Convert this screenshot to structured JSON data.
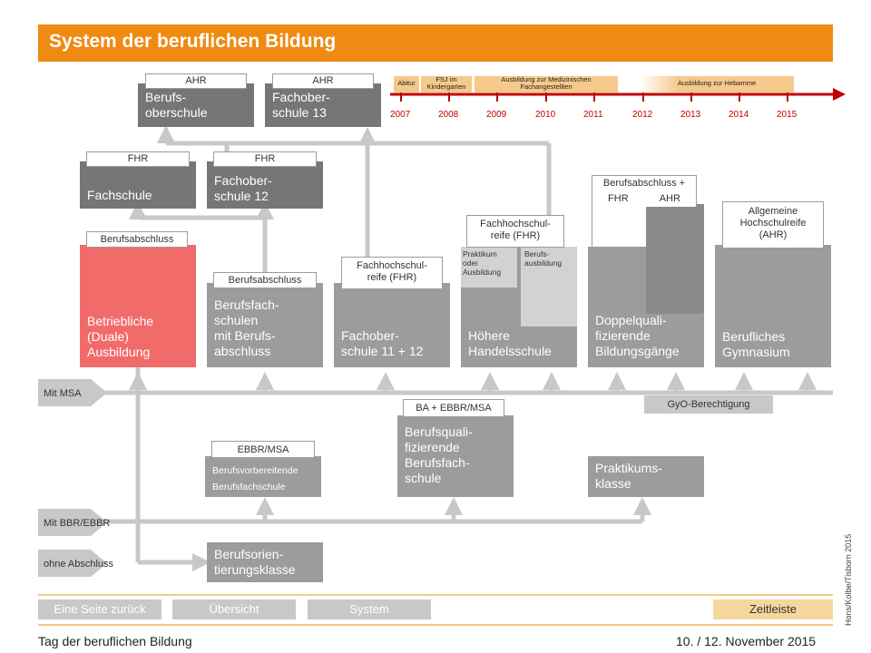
{
  "header": {
    "title": "System der beruflichen Bildung"
  },
  "timeline": {
    "years": [
      "2007",
      "2008",
      "2009",
      "2010",
      "2011",
      "2012",
      "2013",
      "2014",
      "2015"
    ],
    "phases": [
      {
        "label": "Abitur"
      },
      {
        "label": "FSJ im Kindergarten"
      },
      {
        "label": "Ausbildung zur Medizinischen Fachangestellten"
      },
      {
        "label": "Ausbildung zur Hebamme"
      }
    ]
  },
  "boxes": {
    "berufsoberschule": {
      "tag": "AHR",
      "text": "Berufs-\noberschule"
    },
    "fachoberschule13": {
      "tag": "AHR",
      "text": "Fachober-\nschule 13"
    },
    "fachschule": {
      "tag": "FHR",
      "text": "Fachschule"
    },
    "fachoberschule12": {
      "tag": "FHR",
      "text": "Fachober-\nschule 12"
    },
    "duale": {
      "tag": "Berufsabschluss",
      "text": "Betriebliche\n(Duale)\nAusbildung"
    },
    "berufsfachschulen": {
      "tag": "Berufsabschluss",
      "text": "Berufsfach-\nschulen\nmit Berufs-\nabschluss"
    },
    "fachoberschule1112": {
      "tag": "Fachhochschul-\nreife (FHR)",
      "text": "Fachober-\nschule 11 + 12"
    },
    "handelsschule": {
      "tag": "Fachhochschul-\nreife (FHR)",
      "sub_left": "Praktikum\noder\nAusbildung",
      "sub_right": "Berufs-\nausbildung",
      "text": "Höhere\nHandelsschule"
    },
    "doppelquali": {
      "tag": "Berufsabschluss +",
      "tag_fhr": "FHR",
      "tag_ahr": "AHR",
      "text": "Doppelquali-\nfizierende\nBildungsgänge"
    },
    "gymnasium": {
      "tag": "Allgemeine\nHochschulreife\n(AHR)",
      "text": "Berufliches\nGymnasium"
    },
    "berufsquali": {
      "tag": "BA + EBBR/MSA",
      "text": "Berufsquali-\nfizierende\nBerufsfach-\nschule"
    },
    "praktikumsklasse": {
      "text": "Praktikums-\nklasse"
    },
    "berufsvorbereitende": {
      "tag": "EBBR/MSA",
      "text": "Berufsvorbereitende\nBerufsfachschule"
    },
    "berufsorientierung": {
      "text": "Berufsorien-\ntierungsklasse"
    }
  },
  "arrows": {
    "msa": "Mit MSA",
    "bbr": "Mit BBR/EBBR",
    "ohne": "ohne Abschluss",
    "gyo": "GyO-Berechtigung"
  },
  "nav": {
    "back": "Eine Seite zurück",
    "overview": "Übersicht",
    "system": "System",
    "timeline": "Zeitleiste"
  },
  "footer": {
    "event": "Tag der beruflichen Bildung",
    "date": "10. / 12. November 2015",
    "credit": "Hons/Kolbe/Tisborn 2015"
  },
  "colors": {
    "accent": "#ef8a12",
    "dark_box": "#767676",
    "light_box": "#9c9c9c",
    "duale": "#f26b6b",
    "timeline_red": "#c00000"
  }
}
